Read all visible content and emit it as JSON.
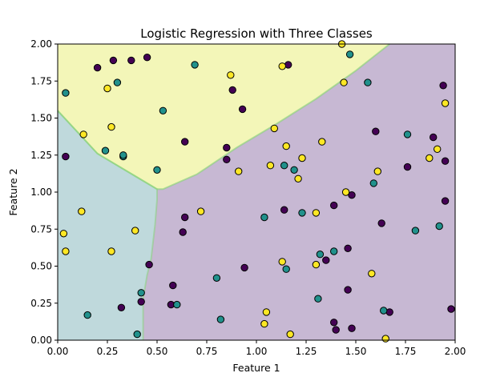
{
  "chart_data": {
    "type": "scatter",
    "title": "Logistic Regression with Three Classes",
    "xlabel": "Feature 1",
    "ylabel": "Feature 2",
    "xlim": [
      0.0,
      2.0
    ],
    "ylim": [
      0.0,
      2.0
    ],
    "xticks": [
      "0.00",
      "0.25",
      "0.50",
      "0.75",
      "1.00",
      "1.25",
      "1.50",
      "1.75",
      "2.00"
    ],
    "yticks": [
      "0.00",
      "0.25",
      "0.50",
      "0.75",
      "1.00",
      "1.25",
      "1.50",
      "1.75",
      "2.00"
    ],
    "grid": false,
    "legend": "none",
    "colors": {
      "class_0": "#440154",
      "class_1": "#21918c",
      "class_2": "#fde725",
      "region_0": "#c7b8d3",
      "region_1": "#bfd9dc",
      "region_2": "#f3f6b8",
      "boundary": "#86d276",
      "marker_edge": "#000000"
    },
    "decision_regions": [
      {
        "class": 1,
        "polygon": [
          [
            0.0,
            0.0
          ],
          [
            0.43,
            0.0
          ],
          [
            0.43,
            0.28
          ],
          [
            0.45,
            0.44
          ],
          [
            0.47,
            0.55
          ],
          [
            0.49,
            0.78
          ],
          [
            0.5,
            0.95
          ],
          [
            0.5,
            1.02
          ],
          [
            0.4,
            1.1
          ],
          [
            0.2,
            1.26
          ],
          [
            0.0,
            1.55
          ]
        ]
      },
      {
        "class": 2,
        "polygon": [
          [
            0.0,
            1.55
          ],
          [
            0.2,
            1.26
          ],
          [
            0.4,
            1.1
          ],
          [
            0.5,
            1.02
          ],
          [
            0.53,
            1.02
          ],
          [
            0.7,
            1.12
          ],
          [
            0.9,
            1.3
          ],
          [
            1.1,
            1.46
          ],
          [
            1.3,
            1.63
          ],
          [
            1.5,
            1.82
          ],
          [
            1.67,
            2.0
          ],
          [
            0.0,
            2.0
          ]
        ]
      }
    ],
    "series": [
      {
        "class": 0,
        "points": [
          [
            0.04,
            1.24
          ],
          [
            0.2,
            1.84
          ],
          [
            0.28,
            1.89
          ],
          [
            0.37,
            1.89
          ],
          [
            0.45,
            1.91
          ],
          [
            0.64,
            1.34
          ],
          [
            0.88,
            1.69
          ],
          [
            0.93,
            1.56
          ],
          [
            0.85,
            1.3
          ],
          [
            0.85,
            1.22
          ],
          [
            0.63,
            0.73
          ],
          [
            0.64,
            0.83
          ],
          [
            0.46,
            0.51
          ],
          [
            0.42,
            0.26
          ],
          [
            0.32,
            0.22
          ],
          [
            0.57,
            0.24
          ],
          [
            0.58,
            0.37
          ],
          [
            0.94,
            0.49
          ],
          [
            1.14,
            0.88
          ],
          [
            1.16,
            1.86
          ],
          [
            1.35,
            0.54
          ],
          [
            1.39,
            0.91
          ],
          [
            1.39,
            0.12
          ],
          [
            1.4,
            0.07
          ],
          [
            1.46,
            0.62
          ],
          [
            1.46,
            0.34
          ],
          [
            1.48,
            0.08
          ],
          [
            1.48,
            0.98
          ],
          [
            1.6,
            1.41
          ],
          [
            1.63,
            0.79
          ],
          [
            1.67,
            0.19
          ],
          [
            1.76,
            1.17
          ],
          [
            1.89,
            1.37
          ],
          [
            1.94,
            1.72
          ],
          [
            1.95,
            1.21
          ],
          [
            1.95,
            0.94
          ],
          [
            1.98,
            0.21
          ]
        ]
      },
      {
        "class": 1,
        "points": [
          [
            0.04,
            1.67
          ],
          [
            0.24,
            1.28
          ],
          [
            0.3,
            1.74
          ],
          [
            0.33,
            1.24
          ],
          [
            0.33,
            1.25
          ],
          [
            0.53,
            1.55
          ],
          [
            0.69,
            1.86
          ],
          [
            0.5,
            1.15
          ],
          [
            0.42,
            0.32
          ],
          [
            0.4,
            0.04
          ],
          [
            0.15,
            0.17
          ],
          [
            0.6,
            0.24
          ],
          [
            0.8,
            0.42
          ],
          [
            0.82,
            0.14
          ],
          [
            1.04,
            0.83
          ],
          [
            1.14,
            1.18
          ],
          [
            1.15,
            0.48
          ],
          [
            1.19,
            1.15
          ],
          [
            1.23,
            0.86
          ],
          [
            1.31,
            0.28
          ],
          [
            1.32,
            0.58
          ],
          [
            1.39,
            0.6
          ],
          [
            1.47,
            1.93
          ],
          [
            1.56,
            1.74
          ],
          [
            1.59,
            1.06
          ],
          [
            1.64,
            0.2
          ],
          [
            1.76,
            1.39
          ],
          [
            1.8,
            0.74
          ],
          [
            1.92,
            0.77
          ]
        ]
      },
      {
        "class": 2,
        "points": [
          [
            0.03,
            0.72
          ],
          [
            0.04,
            0.6
          ],
          [
            0.12,
            0.87
          ],
          [
            0.13,
            1.39
          ],
          [
            0.25,
            1.7
          ],
          [
            0.27,
            1.44
          ],
          [
            0.27,
            0.6
          ],
          [
            0.39,
            0.74
          ],
          [
            0.72,
            0.87
          ],
          [
            0.87,
            1.79
          ],
          [
            0.91,
            1.14
          ],
          [
            1.04,
            0.11
          ],
          [
            1.05,
            0.19
          ],
          [
            1.07,
            1.18
          ],
          [
            1.09,
            1.43
          ],
          [
            1.13,
            0.53
          ],
          [
            1.13,
            1.85
          ],
          [
            1.15,
            1.31
          ],
          [
            1.17,
            0.04
          ],
          [
            1.21,
            1.09
          ],
          [
            1.23,
            1.23
          ],
          [
            1.3,
            0.51
          ],
          [
            1.3,
            0.86
          ],
          [
            1.33,
            1.34
          ],
          [
            1.43,
            2.0
          ],
          [
            1.44,
            1.74
          ],
          [
            1.45,
            1.0
          ],
          [
            1.58,
            0.45
          ],
          [
            1.61,
            1.14
          ],
          [
            1.65,
            0.01
          ],
          [
            1.87,
            1.23
          ],
          [
            1.91,
            1.29
          ],
          [
            1.95,
            1.6
          ]
        ]
      }
    ]
  }
}
